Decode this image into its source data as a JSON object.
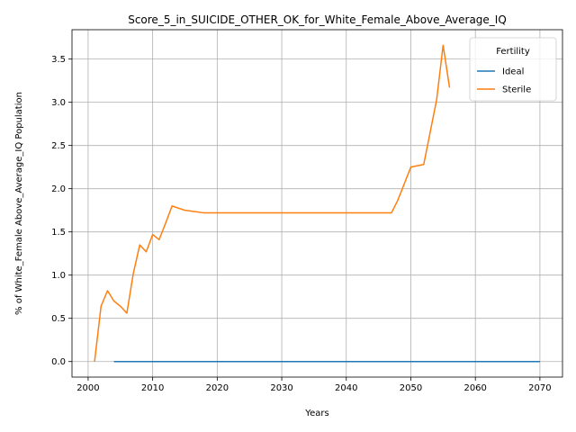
{
  "chart_data": {
    "type": "line",
    "title": "Score_5_in_SUICIDE_OTHER_OK_for_White_Female_Above_Average_IQ",
    "xlabel": "Years",
    "ylabel": "% of White_Female Above_Average_IQ Population",
    "xlim": [
      1997.5,
      2073.5
    ],
    "ylim": [
      -0.18,
      3.84
    ],
    "xticks": [
      2000,
      2010,
      2020,
      2030,
      2040,
      2050,
      2060,
      2070
    ],
    "yticks": [
      0.0,
      0.5,
      1.0,
      1.5,
      2.0,
      2.5,
      3.0,
      3.5
    ],
    "grid": true,
    "legend": {
      "title": "Fertility",
      "placement": "top-right"
    },
    "series": [
      {
        "name": "Ideal",
        "color": "#1f77b4",
        "x": [
          2004,
          2070
        ],
        "y": [
          0.0,
          0.0
        ]
      },
      {
        "name": "Sterile",
        "color": "#ff7f0e",
        "x": [
          2001,
          2002,
          2003,
          2004,
          2005,
          2006,
          2007,
          2008,
          2009,
          2010,
          2011,
          2012,
          2013,
          2015,
          2018,
          2047,
          2048,
          2050,
          2052,
          2054,
          2055,
          2056
        ],
        "y": [
          0.0,
          0.64,
          0.82,
          0.7,
          0.64,
          0.56,
          1.02,
          1.35,
          1.27,
          1.47,
          1.41,
          1.6,
          1.8,
          1.75,
          1.72,
          1.72,
          1.87,
          2.25,
          2.28,
          3.03,
          3.66,
          3.17
        ]
      }
    ]
  }
}
